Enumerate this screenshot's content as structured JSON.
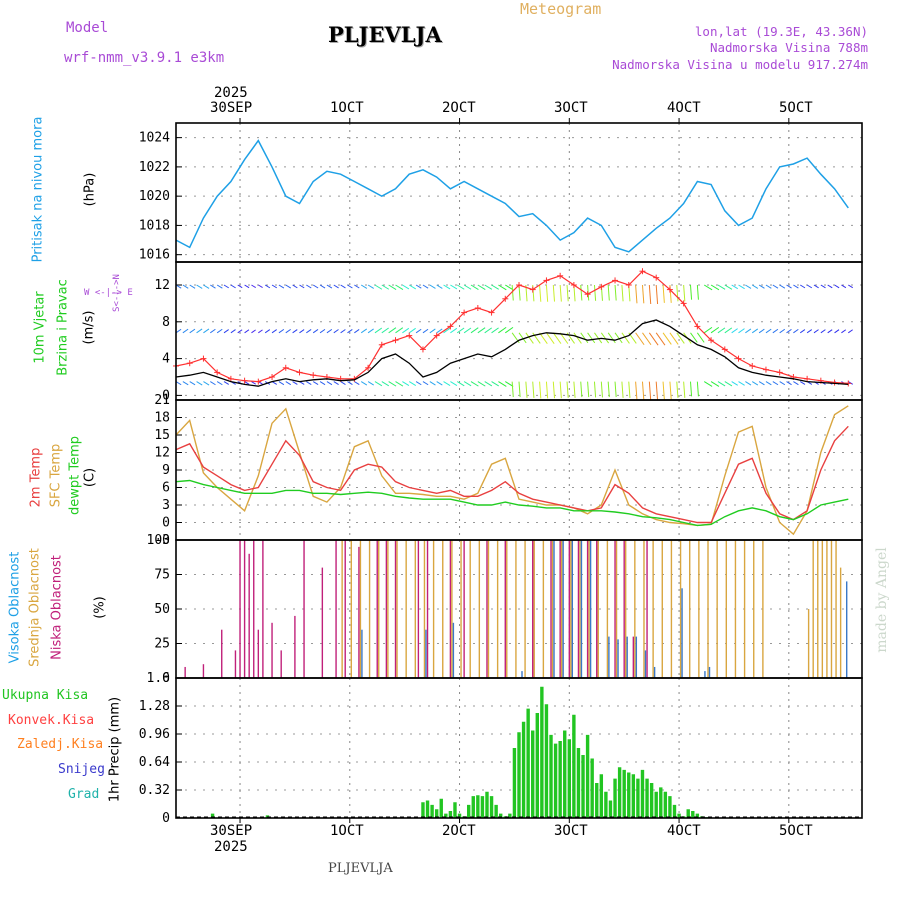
{
  "header": {
    "title": "PLJEVLJA",
    "model_label": "Model",
    "model_name": "wrf-nmm_v3.9.1  e3km",
    "meteogram_label": "Meteogram",
    "lonlat": "lon,lat (19.3E, 43.36N)",
    "altitude": "Nadmorska Visina 788m",
    "model_altitude": "Nadmorska Visina u modelu 917.274m",
    "footer_title": "PLJEVLJA",
    "watermark": "made by Angel"
  },
  "time_axis": {
    "top_year": "2025",
    "bottom_year": "2025",
    "labels": [
      "30SEP",
      "1OCT",
      "2OCT",
      "3OCT",
      "4OCT",
      "5OCT"
    ]
  },
  "panel_labels": {
    "pressure": {
      "title": "Pritisak na nivou mora",
      "unit": "(hPa)"
    },
    "wind": {
      "title1": "10m Vjetar",
      "title2": "Brzina i Pravac",
      "unit": "(m/s)",
      "compass": "W <-|-> E",
      "compass_v": "S<-|->N"
    },
    "temp": {
      "t2m": "2m Temp",
      "sfc": "SFC Temp",
      "dew": "dewpt Temp",
      "unit": "(C)"
    },
    "cloud": {
      "high": "Visoka Oblacnost",
      "mid": "Srednja Oblacnost",
      "low": "Niska Oblacnost",
      "unit": "(%)"
    },
    "precip": {
      "unit": "1hr Precip (mm)",
      "legend": [
        "Ukupna Kisa",
        "Konvek.Kisa",
        "Zaledj.Kisa",
        "Snijeg",
        "Grad"
      ]
    }
  },
  "colors": {
    "pressure": "#1ea0e6",
    "t2m": "#e84040",
    "sfc": "#d9a640",
    "dew": "#20cc20",
    "speed": "#000000",
    "gust": "#ff3030",
    "cloud_high": "#3a78c8",
    "cloud_mid": "#d9a640",
    "cloud_low": "#c0207a",
    "rain_total": "#22c522",
    "rain_conv": "#ff4040",
    "rain_frz": "#ff8020",
    "snow": "#3a3acc",
    "hail": "#20b2aa",
    "label_purple": "#a94bd6",
    "label_gold": "#e0b060"
  },
  "chart_data": [
    {
      "type": "line",
      "title": "Pritisak na nivou mora",
      "ylabel": "(hPa)",
      "ylim": [
        1015.5,
        1025
      ],
      "yticks": [
        1016,
        1018,
        1020,
        1022,
        1024
      ],
      "x_hours": [
        0,
        3,
        6,
        9,
        12,
        15,
        18,
        21,
        24,
        27,
        30,
        33,
        36,
        39,
        42,
        45,
        48,
        51,
        54,
        57,
        60,
        63,
        66,
        69,
        72,
        75,
        78,
        81,
        84,
        87,
        90,
        93,
        96,
        99,
        102,
        105,
        108,
        111,
        114,
        117,
        120,
        123,
        126,
        129,
        132,
        135,
        138,
        141,
        144,
        147
      ],
      "values": [
        1017.0,
        1016.5,
        1018.5,
        1020.0,
        1021.0,
        1022.5,
        1023.8,
        1022.0,
        1020.0,
        1019.5,
        1021.0,
        1021.7,
        1021.5,
        1021.0,
        1020.5,
        1020.0,
        1020.5,
        1021.5,
        1021.8,
        1021.3,
        1020.5,
        1021.0,
        1020.5,
        1020.0,
        1019.5,
        1018.6,
        1018.8,
        1018.0,
        1017.0,
        1017.5,
        1018.5,
        1018.0,
        1016.5,
        1016.2,
        1017.0,
        1017.8,
        1018.5,
        1019.5,
        1021.0,
        1020.8,
        1019.0,
        1018.0,
        1018.5,
        1020.5,
        1022.0,
        1022.2,
        1022.6,
        1021.5,
        1020.5,
        1019.2
      ]
    },
    {
      "type": "line",
      "title": "10m Vjetar Brzina i Pravac",
      "ylabel": "(m/s)",
      "ylim": [
        -0.5,
        14.5
      ],
      "yticks": [
        0,
        4,
        8,
        12
      ],
      "series": [
        {
          "name": "speed",
          "x_hours": [
            0,
            3,
            6,
            9,
            12,
            15,
            18,
            21,
            24,
            27,
            30,
            33,
            36,
            39,
            42,
            45,
            48,
            51,
            54,
            57,
            60,
            63,
            66,
            69,
            72,
            75,
            78,
            81,
            84,
            87,
            90,
            93,
            96,
            99,
            102,
            105,
            108,
            111,
            114,
            117,
            120,
            123,
            126,
            129,
            132,
            135,
            138,
            141,
            144,
            147
          ],
          "values": [
            2.0,
            2.2,
            2.5,
            2.0,
            1.5,
            1.2,
            1.0,
            1.5,
            1.8,
            1.5,
            1.7,
            1.8,
            1.6,
            1.7,
            2.5,
            4.0,
            4.5,
            3.5,
            2.0,
            2.5,
            3.5,
            4.0,
            4.5,
            4.2,
            5.0,
            6.0,
            6.5,
            6.8,
            6.7,
            6.5,
            6.0,
            6.2,
            6.0,
            6.5,
            7.8,
            8.2,
            7.5,
            6.5,
            5.5,
            5.0,
            4.2,
            3.0,
            2.5,
            2.2,
            2.0,
            1.8,
            1.5,
            1.4,
            1.3,
            1.2
          ]
        },
        {
          "name": "gust",
          "x_hours": [
            0,
            3,
            6,
            9,
            12,
            15,
            18,
            21,
            24,
            27,
            30,
            33,
            36,
            39,
            42,
            45,
            48,
            51,
            54,
            57,
            60,
            63,
            66,
            69,
            72,
            75,
            78,
            81,
            84,
            87,
            90,
            93,
            96,
            99,
            102,
            105,
            108,
            111,
            114,
            117,
            120,
            123,
            126,
            129,
            132,
            135,
            138,
            141,
            144,
            147
          ],
          "values": [
            3.2,
            3.5,
            4.0,
            2.5,
            1.8,
            1.6,
            1.5,
            2.0,
            3.0,
            2.5,
            2.2,
            2.0,
            1.8,
            1.8,
            3.0,
            5.5,
            6.0,
            6.5,
            5.0,
            6.5,
            7.5,
            9.0,
            9.5,
            9.0,
            10.5,
            12.0,
            11.5,
            12.5,
            13.0,
            12.0,
            11.0,
            11.8,
            12.5,
            12.0,
            13.5,
            12.8,
            11.5,
            10.0,
            7.5,
            6.0,
            5.0,
            4.0,
            3.2,
            2.8,
            2.5,
            2.0,
            1.8,
            1.6,
            1.4,
            1.3
          ]
        }
      ]
    },
    {
      "type": "line",
      "title": "Temperature",
      "ylabel": "(C)",
      "ylim": [
        -3,
        21
      ],
      "yticks": [
        -3,
        0,
        3,
        6,
        9,
        12,
        15,
        18,
        21
      ],
      "series": [
        {
          "name": "2m Temp",
          "x_hours": [
            0,
            3,
            6,
            9,
            12,
            15,
            18,
            21,
            24,
            27,
            30,
            33,
            36,
            39,
            42,
            45,
            48,
            51,
            54,
            57,
            60,
            63,
            66,
            69,
            72,
            75,
            78,
            81,
            84,
            87,
            90,
            93,
            96,
            99,
            102,
            105,
            108,
            111,
            114,
            117,
            120,
            123,
            126,
            129,
            132,
            135,
            138,
            141,
            144,
            147
          ],
          "values": [
            12.5,
            13.5,
            9.5,
            8.0,
            6.5,
            5.5,
            6.0,
            10.0,
            14.0,
            11.5,
            7.0,
            6.0,
            5.5,
            9.0,
            10.0,
            9.5,
            7.0,
            6.0,
            5.5,
            5.0,
            5.5,
            4.5,
            4.5,
            5.5,
            7.0,
            5.0,
            4.0,
            3.5,
            3.0,
            2.5,
            2.0,
            2.5,
            6.5,
            5.0,
            2.5,
            1.5,
            1.0,
            0.5,
            0.0,
            0.0,
            5.0,
            10.0,
            11.0,
            5.0,
            1.5,
            0.5,
            2.0,
            9.0,
            14.0,
            16.5
          ]
        },
        {
          "name": "SFC Temp",
          "x_hours": [
            0,
            3,
            6,
            9,
            12,
            15,
            18,
            21,
            24,
            27,
            30,
            33,
            36,
            39,
            42,
            45,
            48,
            51,
            54,
            57,
            60,
            63,
            66,
            69,
            72,
            75,
            78,
            81,
            84,
            87,
            90,
            93,
            96,
            99,
            102,
            105,
            108,
            111,
            114,
            117,
            120,
            123,
            126,
            129,
            132,
            135,
            138,
            141,
            144,
            147
          ],
          "values": [
            15.0,
            17.5,
            8.5,
            6.0,
            4.0,
            2.0,
            8.0,
            17.0,
            19.5,
            12.0,
            4.5,
            3.5,
            6.0,
            13.0,
            14.0,
            8.0,
            5.0,
            5.0,
            4.8,
            4.5,
            4.5,
            4.0,
            5.0,
            10.0,
            11.0,
            4.0,
            3.5,
            3.0,
            3.0,
            2.5,
            1.5,
            3.0,
            9.0,
            3.0,
            1.5,
            0.5,
            0.0,
            -0.2,
            -0.5,
            -0.3,
            8.0,
            15.5,
            16.5,
            6.0,
            0.0,
            -2.0,
            2.0,
            12.0,
            18.5,
            20.0
          ]
        },
        {
          "name": "dewpt Temp",
          "x_hours": [
            0,
            3,
            6,
            9,
            12,
            15,
            18,
            21,
            24,
            27,
            30,
            33,
            36,
            39,
            42,
            45,
            48,
            51,
            54,
            57,
            60,
            63,
            66,
            69,
            72,
            75,
            78,
            81,
            84,
            87,
            90,
            93,
            96,
            99,
            102,
            105,
            108,
            111,
            114,
            117,
            120,
            123,
            126,
            129,
            132,
            135,
            138,
            141,
            144,
            147
          ],
          "values": [
            7.0,
            7.2,
            6.5,
            6.0,
            5.5,
            5.0,
            5.0,
            5.0,
            5.5,
            5.5,
            5.0,
            5.0,
            4.8,
            5.0,
            5.2,
            5.0,
            4.5,
            4.2,
            4.0,
            4.0,
            4.0,
            3.5,
            3.0,
            3.0,
            3.5,
            3.0,
            2.8,
            2.5,
            2.5,
            2.0,
            2.0,
            2.0,
            1.8,
            1.5,
            1.0,
            0.8,
            0.5,
            0.0,
            -0.5,
            -0.3,
            1.0,
            2.0,
            2.5,
            2.0,
            1.0,
            0.5,
            1.5,
            3.0,
            3.5,
            4.0
          ]
        }
      ]
    },
    {
      "type": "bar",
      "title": "Oblacnost",
      "ylabel": "(%)",
      "ylim": [
        0,
        100
      ],
      "yticks": [
        0,
        25,
        50,
        75,
        100
      ],
      "series": [
        {
          "name": "Niska Oblacnost",
          "x_hours": [
            2,
            6,
            10,
            13,
            14,
            15,
            16,
            17,
            18,
            19,
            21,
            23,
            26,
            28,
            32,
            35,
            37,
            40,
            44,
            46,
            48,
            53,
            55,
            60,
            63,
            68,
            72,
            78,
            82,
            84,
            86,
            88,
            90,
            92,
            96,
            98,
            100,
            103
          ],
          "values": [
            8,
            10,
            35,
            20,
            100,
            100,
            90,
            100,
            35,
            100,
            40,
            20,
            45,
            100,
            80,
            100,
            100,
            95,
            100,
            100,
            100,
            100,
            100,
            100,
            100,
            100,
            100,
            100,
            100,
            100,
            100,
            100,
            100,
            100,
            100,
            100,
            30,
            100
          ]
        },
        {
          "name": "Srednja Oblacnost",
          "x_hours": [
            36,
            38,
            40,
            42,
            44,
            46,
            48,
            50,
            52,
            54,
            56,
            58,
            60,
            62,
            64,
            66,
            68,
            70,
            72,
            74,
            76,
            78,
            80,
            82,
            84,
            86,
            88,
            90,
            92,
            94,
            96,
            98,
            100,
            102,
            104,
            106,
            108,
            110,
            112,
            114,
            116,
            118,
            120,
            122,
            124,
            126,
            128,
            138,
            139,
            140,
            141,
            142,
            143,
            144,
            145
          ],
          "values": [
            100,
            100,
            100,
            100,
            100,
            100,
            100,
            100,
            100,
            100,
            100,
            100,
            100,
            100,
            100,
            100,
            100,
            100,
            100,
            100,
            100,
            100,
            100,
            100,
            100,
            100,
            100,
            100,
            100,
            100,
            100,
            100,
            100,
            100,
            100,
            100,
            100,
            100,
            100,
            100,
            100,
            100,
            100,
            100,
            100,
            100,
            100,
            50,
            100,
            100,
            100,
            100,
            100,
            100,
            80
          ]
        },
        {
          "name": "Visoka Oblacnost",
          "x_hours": [
            40,
            54,
            60,
            75,
            82,
            84,
            86,
            88,
            90,
            94,
            96,
            98,
            100,
            102,
            104,
            110,
            115,
            116,
            146
          ],
          "values": [
            35,
            35,
            40,
            5,
            100,
            100,
            100,
            100,
            100,
            30,
            28,
            30,
            30,
            20,
            8,
            65,
            5,
            8,
            70
          ]
        }
      ]
    },
    {
      "type": "bar",
      "title": "1hr Precip",
      "ylabel": "1hr Precip (mm)",
      "ylim": [
        0,
        1.6
      ],
      "yticks": [
        0,
        0.32,
        0.64,
        0.96,
        1.28,
        1.6
      ],
      "x_hours": [
        8,
        20,
        54,
        55,
        56,
        57,
        58,
        59,
        60,
        61,
        62,
        63,
        64,
        65,
        66,
        67,
        68,
        69,
        70,
        71,
        72,
        73,
        74,
        75,
        76,
        77,
        78,
        79,
        80,
        81,
        82,
        83,
        84,
        85,
        86,
        87,
        88,
        89,
        90,
        91,
        92,
        93,
        94,
        95,
        96,
        97,
        98,
        99,
        100,
        101,
        102,
        103,
        104,
        105,
        106,
        107,
        108,
        109,
        110,
        111,
        112,
        113,
        114,
        115,
        116
      ],
      "values": [
        0.05,
        0.03,
        0.18,
        0.2,
        0.15,
        0.1,
        0.22,
        0.05,
        0.08,
        0.18,
        0.05,
        0.02,
        0.15,
        0.25,
        0.26,
        0.25,
        0.3,
        0.25,
        0.15,
        0.05,
        0.02,
        0.05,
        0.8,
        0.98,
        1.1,
        1.25,
        1.0,
        1.2,
        1.5,
        1.3,
        0.95,
        0.85,
        0.88,
        1.0,
        0.9,
        1.18,
        0.8,
        0.72,
        0.95,
        0.68,
        0.4,
        0.5,
        0.3,
        0.2,
        0.45,
        0.58,
        0.55,
        0.52,
        0.5,
        0.45,
        0.55,
        0.45,
        0.4,
        0.3,
        0.35,
        0.3,
        0.25,
        0.15,
        0.05,
        0.02,
        0.1,
        0.08,
        0.05,
        0.02,
        0.01
      ]
    }
  ]
}
